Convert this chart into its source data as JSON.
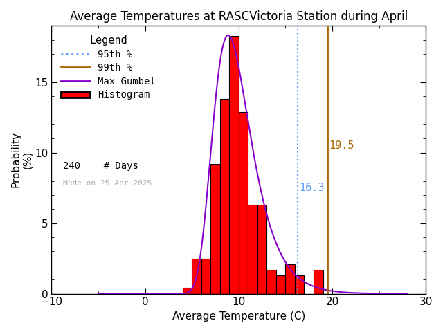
{
  "title": "Average Temperatures at RASCVictoria Station during April",
  "xlabel": "Average Temperature (C)",
  "ylabel_line1": "Probability",
  "ylabel_line2": "(%)",
  "xlim": [
    -10,
    30
  ],
  "ylim": [
    0,
    19
  ],
  "bar_edges": [
    3,
    4,
    5,
    6,
    7,
    8,
    9,
    10,
    11,
    12,
    13,
    14,
    15,
    16,
    17,
    18,
    19,
    20
  ],
  "bar_heights": [
    0.0,
    0.4,
    2.5,
    2.5,
    9.2,
    13.8,
    18.3,
    12.9,
    6.3,
    6.3,
    1.7,
    1.3,
    2.1,
    1.3,
    0.0,
    1.7,
    0.0,
    0.0
  ],
  "bar_color": "#ff0000",
  "bar_edgecolor": "#000000",
  "gumbel_color": "#8800cc",
  "gumbel_mu": 7.8,
  "gumbel_beta": 2.3,
  "p95_value": 16.3,
  "p99_value": 19.5,
  "p95_color": "#5599ff",
  "p99_color": "#aa6600",
  "n_days": 240,
  "made_on": "Made on 25 Apr 2025",
  "legend_title": "Legend",
  "background_color": "#ffffff",
  "title_fontsize": 12,
  "axis_fontsize": 11,
  "tick_fontsize": 11
}
